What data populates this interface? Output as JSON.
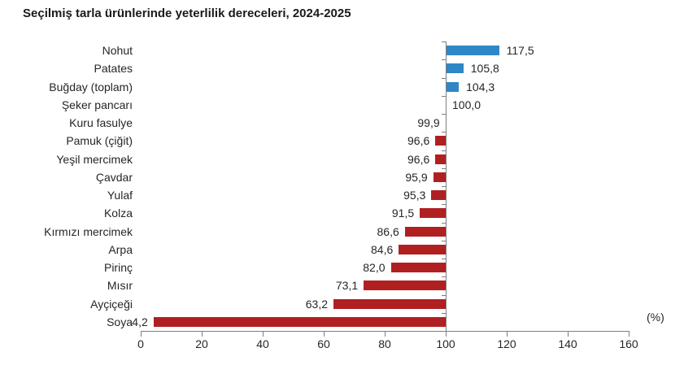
{
  "title": "Seçilmiş tarla ürünlerinde yeterlilik dereceleri, 2024-2025",
  "chart_data": {
    "type": "bar",
    "orientation": "horizontal",
    "title": "Seçilmiş tarla ürünlerinde yeterlilik dereceleri, 2024-2025",
    "xlabel": "(%)",
    "ylabel": "",
    "xlim": [
      0,
      160
    ],
    "x_ticks": [
      0,
      20,
      40,
      60,
      80,
      100,
      120,
      140,
      160
    ],
    "x_tick_labels": [
      "0",
      "20",
      "40",
      "60",
      "80",
      "100",
      "120",
      "140",
      "160"
    ],
    "base_value": 100,
    "grid": false,
    "legend": "none",
    "categories": [
      "Nohut",
      "Patates",
      "Buğday (toplam)",
      "Şeker pancarı",
      "Kuru fasulye",
      "Pamuk (çiğit)",
      "Yeşil mercimek",
      "Çavdar",
      "Yulaf",
      "Kolza",
      "Kırmızı mercimek",
      "Arpa",
      "Pirinç",
      "Mısır",
      "Ayçiçeği",
      "Soya"
    ],
    "values": [
      117.5,
      105.8,
      104.3,
      100.0,
      99.9,
      96.6,
      96.6,
      95.9,
      95.3,
      91.5,
      86.6,
      84.6,
      82.0,
      73.1,
      63.2,
      4.2
    ],
    "value_labels": [
      "117,5",
      "105,8",
      "104,3",
      "100,0",
      "99,9",
      "96,6",
      "96,6",
      "95,9",
      "95,3",
      "91,5",
      "86,6",
      "84,6",
      "82,0",
      "73,1",
      "63,2",
      "4,2"
    ],
    "colors": {
      "above_base": "#2f87c6",
      "below_base": "#b02021",
      "axis": "#7f7f7f",
      "text": "#262626",
      "title_text": "#1a1a1a",
      "background": "#ffffff"
    }
  }
}
